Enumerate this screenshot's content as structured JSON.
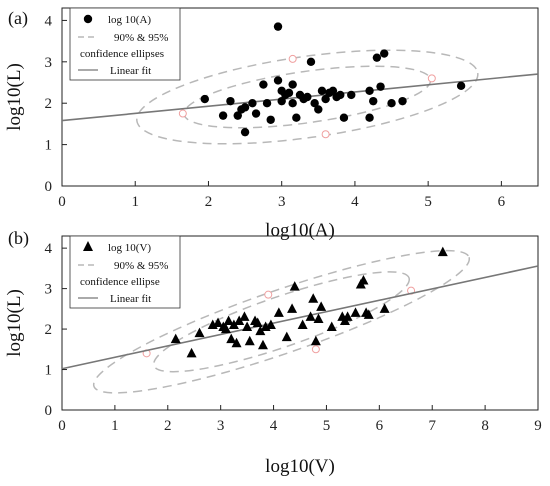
{
  "chart_data": [
    {
      "type": "scatter",
      "panel_label": "(a)",
      "xlabel": "log10(A)",
      "ylabel": "log10(L)",
      "xlim": [
        0,
        6.5
      ],
      "ylim": [
        0,
        4.3
      ],
      "xticks": [
        "0",
        "1",
        "2",
        "3",
        "4",
        "5",
        "6"
      ],
      "yticks": [
        "0",
        "1",
        "2",
        "3",
        "4"
      ],
      "marker": "circle",
      "legend": [
        "log 10(A)",
        "90% & 95%",
        "confidence ellipses",
        "Linear fit"
      ],
      "legend_position": "top-left",
      "fit_line": {
        "intercept": 1.58,
        "slope": 0.173
      },
      "ellipses": [
        {
          "label": "90%",
          "center": [
            3.35,
            2.15
          ],
          "semi_axes": [
            1.7,
            0.62
          ],
          "angle_deg": 8
        },
        {
          "label": "95%",
          "center": [
            3.35,
            2.15
          ],
          "semi_axes": [
            2.35,
            0.98
          ],
          "angle_deg": 8
        }
      ],
      "ellipse_markers": [
        [
          3.15,
          3.07
        ],
        [
          5.05,
          2.6
        ],
        [
          1.65,
          1.75
        ],
        [
          3.6,
          1.25
        ]
      ],
      "points": [
        [
          1.95,
          2.1
        ],
        [
          2.2,
          1.7
        ],
        [
          2.3,
          2.05
        ],
        [
          2.4,
          1.7
        ],
        [
          2.45,
          1.85
        ],
        [
          2.5,
          1.3
        ],
        [
          2.5,
          1.9
        ],
        [
          2.6,
          2.0
        ],
        [
          2.65,
          1.75
        ],
        [
          2.75,
          2.45
        ],
        [
          2.8,
          2.0
        ],
        [
          2.85,
          1.6
        ],
        [
          2.95,
          3.85
        ],
        [
          2.95,
          2.55
        ],
        [
          3.0,
          2.3
        ],
        [
          3.0,
          2.05
        ],
        [
          3.05,
          2.2
        ],
        [
          3.1,
          2.25
        ],
        [
          3.15,
          2.45
        ],
        [
          3.15,
          2.0
        ],
        [
          3.2,
          1.65
        ],
        [
          3.25,
          2.2
        ],
        [
          3.3,
          2.1
        ],
        [
          3.35,
          2.15
        ],
        [
          3.4,
          3.0
        ],
        [
          3.45,
          2.0
        ],
        [
          3.5,
          1.85
        ],
        [
          3.55,
          2.3
        ],
        [
          3.6,
          2.1
        ],
        [
          3.65,
          2.25
        ],
        [
          3.7,
          2.3
        ],
        [
          3.75,
          2.15
        ],
        [
          3.8,
          2.2
        ],
        [
          3.85,
          1.65
        ],
        [
          3.95,
          2.2
        ],
        [
          4.2,
          2.3
        ],
        [
          4.2,
          1.65
        ],
        [
          4.25,
          2.05
        ],
        [
          4.3,
          3.1
        ],
        [
          4.35,
          2.4
        ],
        [
          4.4,
          3.2
        ],
        [
          4.5,
          2.0
        ],
        [
          4.65,
          2.05
        ],
        [
          5.45,
          2.42
        ]
      ]
    },
    {
      "type": "scatter",
      "panel_label": "(b)",
      "xlabel": "log10(V)",
      "ylabel": "log10(L)",
      "xlim": [
        0,
        9
      ],
      "ylim": [
        0,
        4.3
      ],
      "xticks": [
        "0",
        "1",
        "2",
        "3",
        "4",
        "5",
        "6",
        "7",
        "8",
        "9"
      ],
      "yticks": [
        "0",
        "1",
        "2",
        "3",
        "4"
      ],
      "marker": "triangle",
      "legend": [
        "log 10(V)",
        "90% & 95%",
        "confidence ellipse",
        "Linear fit"
      ],
      "legend_position": "top-left",
      "fit_line": {
        "intercept": 1.02,
        "slope": 0.282
      },
      "ellipses": [
        {
          "label": "90%",
          "center": [
            4.15,
            2.18
          ],
          "semi_axes": [
            2.55,
            0.62
          ],
          "angle_deg": 19
        },
        {
          "label": "95%",
          "center": [
            4.15,
            2.18
          ],
          "semi_axes": [
            3.75,
            0.78
          ],
          "angle_deg": 19
        }
      ],
      "ellipse_markers": [
        [
          3.9,
          2.85
        ],
        [
          6.6,
          2.95
        ],
        [
          1.6,
          1.4
        ],
        [
          4.8,
          1.5
        ]
      ],
      "points": [
        [
          2.15,
          1.75
        ],
        [
          2.45,
          1.4
        ],
        [
          2.6,
          1.9
        ],
        [
          2.85,
          2.1
        ],
        [
          2.95,
          2.15
        ],
        [
          3.05,
          2.05
        ],
        [
          3.1,
          2.0
        ],
        [
          3.15,
          2.2
        ],
        [
          3.2,
          1.75
        ],
        [
          3.25,
          2.1
        ],
        [
          3.3,
          1.65
        ],
        [
          3.35,
          2.2
        ],
        [
          3.45,
          2.3
        ],
        [
          3.5,
          2.05
        ],
        [
          3.55,
          1.7
        ],
        [
          3.65,
          2.2
        ],
        [
          3.7,
          2.15
        ],
        [
          3.75,
          1.95
        ],
        [
          3.8,
          1.6
        ],
        [
          3.85,
          2.05
        ],
        [
          3.95,
          2.1
        ],
        [
          4.1,
          2.4
        ],
        [
          4.25,
          1.8
        ],
        [
          4.35,
          2.5
        ],
        [
          4.4,
          3.05
        ],
        [
          4.55,
          2.1
        ],
        [
          4.7,
          2.3
        ],
        [
          4.75,
          2.75
        ],
        [
          4.8,
          1.7
        ],
        [
          4.85,
          2.25
        ],
        [
          4.9,
          2.55
        ],
        [
          5.1,
          2.05
        ],
        [
          5.3,
          2.3
        ],
        [
          5.35,
          2.2
        ],
        [
          5.4,
          2.3
        ],
        [
          5.55,
          2.4
        ],
        [
          5.65,
          3.1
        ],
        [
          5.7,
          3.2
        ],
        [
          5.75,
          2.4
        ],
        [
          5.8,
          2.35
        ],
        [
          6.1,
          2.5
        ],
        [
          7.2,
          3.9
        ]
      ]
    }
  ]
}
